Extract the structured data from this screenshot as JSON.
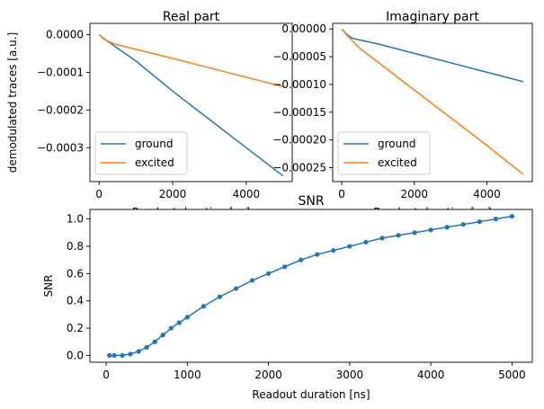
{
  "chart_data": [
    {
      "type": "line",
      "title": "Real part",
      "xlabel": "Readout duration [ns]",
      "ylabel": "demodulated traces [a.u.]",
      "xlim": [
        -250,
        5250
      ],
      "ylim": [
        -0.00039,
        3e-05
      ],
      "xticks": [
        0,
        2000,
        4000
      ],
      "xtick_labels": [
        "0",
        "2000",
        "4000"
      ],
      "yticks": [
        0.0,
        -0.0001,
        -0.0002,
        -0.0003
      ],
      "ytick_labels": [
        "0.0000",
        "−0.0001",
        "−0.0002",
        "−0.0003"
      ],
      "legend_position": "lower-left",
      "series": [
        {
          "name": "ground",
          "color": "#1f77b4",
          "x": [
            0,
            100,
            200,
            300,
            500,
            1000,
            2000,
            3000,
            4000,
            5000
          ],
          "y": [
            0.0,
            -9e-06,
            -1.6e-05,
            -2.2e-05,
            -3.6e-05,
            -7e-05,
            -0.00015,
            -0.000225,
            -0.0003,
            -0.000375
          ]
        },
        {
          "name": "excited",
          "color": "#ff7f0e",
          "x": [
            0,
            100,
            200,
            300,
            500,
            1000,
            2000,
            3000,
            4000,
            5000
          ],
          "y": [
            0.0,
            -8e-06,
            -1.5e-05,
            -2e-05,
            -2.7e-05,
            -3.9e-05,
            -6.3e-05,
            -8.8e-05,
            -0.000113,
            -0.000138
          ]
        }
      ]
    },
    {
      "type": "line",
      "title": "Imaginary part",
      "xlabel": "Readout duration [ns]",
      "ylabel": "",
      "xlim": [
        -250,
        5250
      ],
      "ylim": [
        -0.000275,
        1e-05
      ],
      "xticks": [
        0,
        2000,
        4000
      ],
      "xtick_labels": [
        "0",
        "2000",
        "4000"
      ],
      "yticks": [
        0.0,
        -5e-05,
        -0.0001,
        -0.00015,
        -0.0002,
        -0.00025
      ],
      "ytick_labels": [
        "0.00000",
        "−0.00005",
        "−0.00010",
        "−0.00015",
        "−0.00020",
        "−0.00025"
      ],
      "legend_position": "lower-left",
      "series": [
        {
          "name": "ground",
          "color": "#1f77b4",
          "x": [
            0,
            100,
            200,
            300,
            500,
            1000,
            2000,
            3000,
            4000,
            5000
          ],
          "y": [
            0.0,
            -7e-06,
            -1.3e-05,
            -1.7e-05,
            -2e-05,
            -2.7e-05,
            -4.4e-05,
            -6.1e-05,
            -7.8e-05,
            -9.5e-05
          ]
        },
        {
          "name": "excited",
          "color": "#ff7f0e",
          "x": [
            0,
            100,
            200,
            300,
            500,
            1000,
            2000,
            3000,
            4000,
            5000
          ],
          "y": [
            0.0,
            -8e-06,
            -1.5e-05,
            -2.2e-05,
            -3.5e-05,
            -6e-05,
            -0.00011,
            -0.00016,
            -0.00021,
            -0.000262
          ]
        }
      ]
    },
    {
      "type": "line",
      "title": "SNR",
      "xlabel": "Readout duration [ns]",
      "ylabel": "SNR",
      "xlim": [
        -200,
        5250
      ],
      "ylim": [
        -0.05,
        1.07
      ],
      "xticks": [
        0,
        1000,
        2000,
        3000,
        4000,
        5000
      ],
      "xtick_labels": [
        "0",
        "1000",
        "2000",
        "3000",
        "4000",
        "5000"
      ],
      "yticks": [
        0.0,
        0.2,
        0.4,
        0.6,
        0.8,
        1.0
      ],
      "ytick_labels": [
        "0.0",
        "0.2",
        "0.4",
        "0.6",
        "0.8",
        "1.0"
      ],
      "markers": true,
      "series": [
        {
          "color": "#1f77b4",
          "x": [
            40,
            100,
            200,
            300,
            400,
            500,
            600,
            700,
            800,
            900,
            1000,
            1200,
            1400,
            1600,
            1800,
            2000,
            2200,
            2400,
            2600,
            2800,
            3000,
            3200,
            3400,
            3600,
            3800,
            4000,
            4200,
            4400,
            4600,
            4800,
            5000
          ],
          "y": [
            0.0,
            0.0,
            0.0,
            0.01,
            0.03,
            0.06,
            0.1,
            0.15,
            0.2,
            0.24,
            0.28,
            0.36,
            0.43,
            0.49,
            0.55,
            0.6,
            0.65,
            0.7,
            0.74,
            0.77,
            0.8,
            0.83,
            0.86,
            0.88,
            0.9,
            0.92,
            0.94,
            0.96,
            0.98,
            1.0,
            1.02
          ]
        }
      ]
    }
  ]
}
